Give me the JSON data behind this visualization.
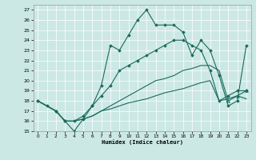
{
  "xlabel": "Humidex (Indice chaleur)",
  "bg_color": "#cce8e5",
  "line_color": "#1a6b5a",
  "xlim": [
    -0.5,
    23.5
  ],
  "ylim": [
    15,
    27.5
  ],
  "yticks": [
    15,
    16,
    17,
    18,
    19,
    20,
    21,
    22,
    23,
    24,
    25,
    26,
    27
  ],
  "xticks": [
    0,
    1,
    2,
    3,
    4,
    5,
    6,
    7,
    8,
    9,
    10,
    11,
    12,
    13,
    14,
    15,
    16,
    17,
    18,
    19,
    20,
    21,
    22,
    23
  ],
  "s1_x": [
    0,
    1,
    2,
    3,
    4,
    5,
    6,
    7,
    8,
    9,
    10,
    11,
    12,
    13,
    14,
    15,
    16,
    17,
    18,
    19,
    20,
    21,
    22,
    23
  ],
  "s1_y": [
    18.0,
    17.5,
    17.0,
    16.0,
    15.0,
    16.2,
    17.5,
    19.5,
    23.5,
    23.0,
    24.5,
    26.0,
    27.0,
    25.5,
    25.5,
    25.5,
    24.8,
    22.5,
    24.0,
    23.0,
    20.5,
    17.5,
    18.0,
    23.5
  ],
  "s2_x": [
    0,
    2,
    3,
    4,
    5,
    6,
    7,
    8,
    9,
    10,
    11,
    12,
    13,
    14,
    15,
    16,
    17,
    18,
    19,
    20,
    21,
    22,
    23
  ],
  "s2_y": [
    18.0,
    17.0,
    16.0,
    16.0,
    16.5,
    17.5,
    18.5,
    19.5,
    21.0,
    21.5,
    22.0,
    22.5,
    23.0,
    23.5,
    24.0,
    24.0,
    23.5,
    23.0,
    21.0,
    18.0,
    18.5,
    19.0,
    19.0
  ],
  "s3_x": [
    0,
    2,
    3,
    4,
    5,
    6,
    7,
    8,
    9,
    10,
    11,
    12,
    13,
    14,
    15,
    16,
    17,
    18,
    19,
    20,
    21,
    22,
    23
  ],
  "s3_y": [
    18.0,
    17.0,
    16.0,
    16.0,
    16.2,
    16.5,
    17.0,
    17.5,
    18.0,
    18.5,
    19.0,
    19.5,
    20.0,
    20.2,
    20.5,
    21.0,
    21.2,
    21.5,
    21.5,
    21.0,
    18.0,
    18.5,
    19.0
  ],
  "s4_x": [
    0,
    2,
    3,
    4,
    5,
    6,
    7,
    8,
    9,
    10,
    11,
    12,
    13,
    14,
    15,
    16,
    17,
    18,
    19,
    20,
    21,
    22,
    23
  ],
  "s4_y": [
    18.0,
    17.0,
    16.0,
    16.0,
    16.2,
    16.5,
    17.0,
    17.2,
    17.5,
    17.8,
    18.0,
    18.2,
    18.5,
    18.8,
    19.0,
    19.2,
    19.5,
    19.8,
    20.0,
    18.0,
    18.2,
    18.5,
    18.2
  ]
}
